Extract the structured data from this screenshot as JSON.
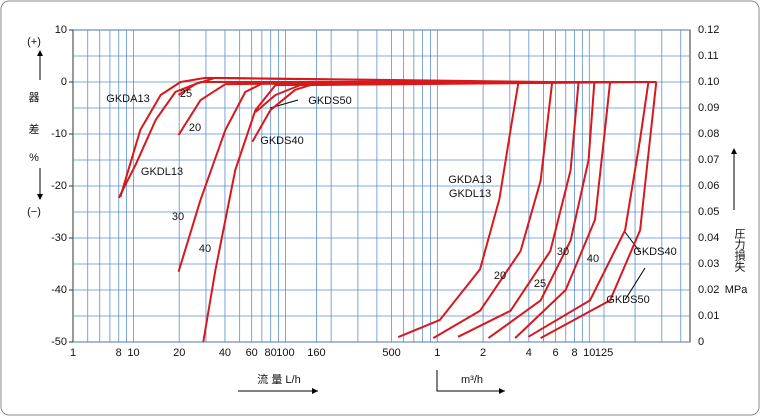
{
  "chart_data": {
    "type": "line",
    "xscale": "log",
    "xlim": [
      4,
      46000
    ],
    "x_start_label": "1",
    "xticks": [
      8,
      10,
      20,
      40,
      60,
      80,
      100,
      160,
      500,
      {
        "value": 1000,
        "label": "1"
      },
      {
        "value": 2000,
        "label": "2"
      },
      {
        "value": 4000,
        "label": "4"
      },
      {
        "value": 6000,
        "label": "6"
      },
      {
        "value": 8000,
        "label": "8"
      },
      {
        "value": 10000,
        "label": "10"
      },
      {
        "value": 12500,
        "label": "125"
      }
    ],
    "xgrid": [
      5,
      6,
      7,
      9,
      30,
      50,
      70,
      90,
      200,
      300,
      400,
      600,
      700,
      800,
      900,
      3000,
      5000,
      7000,
      9000,
      20000,
      30000,
      40000
    ],
    "ylim": [
      -50,
      10
    ],
    "yticks": [
      -50,
      -40,
      -30,
      -20,
      -10,
      0,
      10
    ],
    "y2lim": [
      0,
      0.12
    ],
    "y2ticks": [
      0,
      0.01,
      0.02,
      0.03,
      0.04,
      0.05,
      0.06,
      0.07,
      0.08,
      0.09,
      {
        "value": 0.1,
        "label": "0.10"
      },
      0.11,
      0.12
    ],
    "grid": true,
    "y_label": [
      "(+)",
      "器",
      "差",
      "%",
      "(−)"
    ],
    "y2_label": "圧力損失",
    "y2_unit": "MPa",
    "x_label": "流 量 L/h",
    "x2_label": "m³/h",
    "annotations": [
      "GKDA13",
      "25",
      "20",
      "GKDL13",
      "30",
      "40",
      "GKDS50",
      "GKDS40",
      "GKDA13",
      "GKDL13",
      "20",
      "25",
      "30",
      "40",
      "GKDS40",
      "GKDS50"
    ],
    "series": [
      {
        "color": "#d7191c",
        "x": [
          8.2,
          11.1,
          15.1,
          20.4,
          29.7,
          3500
        ],
        "values": [
          -22.1,
          -9.2,
          -2.5,
          0,
          0.8,
          0
        ]
      },
      {
        "color": "#d7191c",
        "x": [
          8,
          10.3,
          14,
          18.9,
          27.6,
          3500
        ],
        "values": [
          -22.3,
          -16,
          -7.3,
          -1.9,
          0,
          0
        ]
      },
      {
        "color": "#d7191c",
        "x": [
          19.8,
          25.6,
          34.6,
          5700
        ],
        "values": [
          -2.5,
          -0.4,
          0.8,
          0
        ]
      },
      {
        "color": "#d7191c",
        "x": [
          19.8,
          27.6,
          40.3,
          8500
        ],
        "values": [
          -10.2,
          -3.5,
          -0.4,
          0
        ]
      },
      {
        "color": "#d7191c",
        "x": [
          19.8,
          27.6,
          40.3,
          54.5,
          73.7,
          10800
        ],
        "values": [
          -36.5,
          -22.7,
          -9.2,
          -1.9,
          0,
          0
        ]
      },
      {
        "color": "#d7191c",
        "x": [
          28.8,
          34.6,
          46.8,
          63.5,
          86,
          13700
        ],
        "values": [
          -50,
          -36.2,
          -16.9,
          -5.4,
          -0.6,
          0
        ]
      },
      {
        "color": "#d7191c",
        "x": [
          63.5,
          86,
          125,
          27600
        ],
        "values": [
          -5.8,
          -2.5,
          -0.6,
          0
        ]
      },
      {
        "color": "#d7191c",
        "x": [
          60.6,
          79.7,
          116,
          169,
          24500
        ],
        "values": [
          -11.5,
          -5.4,
          -1.5,
          0,
          0
        ]
      },
      {
        "color": "#d7191c",
        "axis": "y2",
        "x": [
          553,
          1040,
          1910,
          2560,
          3100,
          3420
        ],
        "values": [
          0.0019,
          0.0085,
          0.028,
          0.055,
          0.085,
          0.1
        ]
      },
      {
        "color": "#d7191c",
        "axis": "y2",
        "x": [
          940,
          1910,
          3530,
          4780,
          5700
        ],
        "values": [
          0.0015,
          0.012,
          0.035,
          0.062,
          0.1
        ]
      },
      {
        "color": "#d7191c",
        "axis": "y2",
        "x": [
          1370,
          3030,
          5540,
          7530,
          8500
        ],
        "values": [
          0.002,
          0.012,
          0.035,
          0.066,
          0.1
        ]
      },
      {
        "color": "#d7191c",
        "axis": "y2",
        "x": [
          2170,
          4780,
          7530,
          9890,
          10800
        ],
        "values": [
          0.0015,
          0.016,
          0.039,
          0.07,
          0.1
        ]
      },
      {
        "color": "#d7191c",
        "axis": "y2",
        "x": [
          3250,
          6990,
          10900,
          12700,
          13700
        ],
        "values": [
          0.0015,
          0.02,
          0.047,
          0.082,
          0.1
        ]
      },
      {
        "color": "#d7191c",
        "axis": "y2",
        "x": [
          3970,
          10100,
          17200,
          21600,
          24500
        ],
        "values": [
          0.002,
          0.016,
          0.043,
          0.078,
          0.1
        ]
      },
      {
        "color": "#d7191c",
        "axis": "y2",
        "x": [
          4780,
          13700,
          21600,
          25100,
          27600
        ],
        "values": [
          0.0015,
          0.016,
          0.043,
          0.078,
          0.1
        ]
      }
    ]
  }
}
